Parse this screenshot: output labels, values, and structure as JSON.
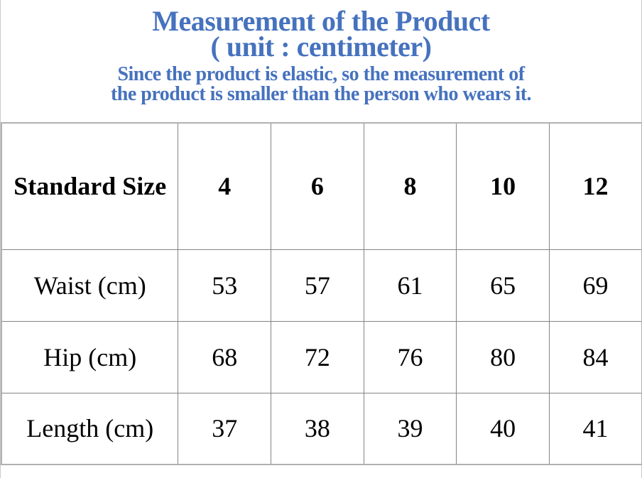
{
  "heading": {
    "title_line1": "Measurement of the Product",
    "title_line2": "( unit : centimeter)",
    "subtitle_line1": "Since the product is elastic, so the measurement of",
    "subtitle_line2": "the product is smaller than the person who wears it."
  },
  "colors": {
    "heading_blue": "#4672be",
    "table_border": "#848484",
    "outer_border": "#b0b0b0",
    "page_edge": "#c9c9c9",
    "text_black": "#000000"
  },
  "size_table": {
    "header": [
      "Standard Size",
      "4",
      "6",
      "8",
      "10",
      "12"
    ],
    "rows": [
      {
        "label": "Waist (cm)",
        "values": [
          "53",
          "57",
          "61",
          "65",
          "69"
        ]
      },
      {
        "label": "Hip (cm)",
        "values": [
          "68",
          "72",
          "76",
          "80",
          "84"
        ]
      },
      {
        "label": "Length (cm)",
        "values": [
          "37",
          "38",
          "39",
          "40",
          "41"
        ]
      }
    ]
  },
  "chart_data": {
    "type": "table",
    "title": "Measurement of the Product ( unit : centimeter)",
    "columns": [
      "Standard Size",
      "4",
      "6",
      "8",
      "10",
      "12"
    ],
    "rows": [
      [
        "Waist (cm)",
        53,
        57,
        61,
        65,
        69
      ],
      [
        "Hip (cm)",
        68,
        72,
        76,
        80,
        84
      ],
      [
        "Length (cm)",
        37,
        38,
        39,
        40,
        41
      ]
    ]
  }
}
